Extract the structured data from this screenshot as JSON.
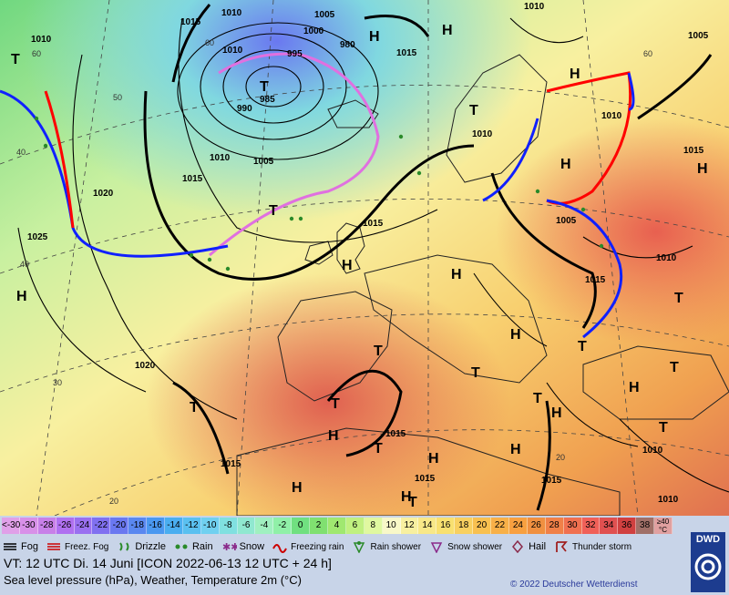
{
  "map": {
    "highs": [
      "H",
      "H",
      "H",
      "H",
      "H",
      "H",
      "H",
      "H",
      "H",
      "H",
      "H",
      "H",
      "H",
      "H",
      "H",
      "H"
    ],
    "lows": [
      "T",
      "T",
      "T",
      "T",
      "T",
      "T",
      "T",
      "T",
      "T",
      "T",
      "T",
      "T",
      "T",
      "T",
      "T"
    ],
    "isobar_labels": [
      "1015",
      "1010",
      "1005",
      "1000",
      "995",
      "990",
      "985",
      "980",
      "1015",
      "1010",
      "1005",
      "1015",
      "1020",
      "1025",
      "1020",
      "1015",
      "1010",
      "1005",
      "1010",
      "1015",
      "1010",
      "1005",
      "1015",
      "1010",
      "1015",
      "1015",
      "1010",
      "1010",
      "1015",
      "1015",
      "1010",
      "1010"
    ],
    "latlon_labels": [
      "60",
      "50",
      "40",
      "30",
      "20",
      "40",
      "60",
      "20",
      "60"
    ],
    "colors": {
      "warm_front": "#ff0000",
      "cold_front": "#1020ff",
      "occluded_front": "#e070e0",
      "isobar": "#000000"
    }
  },
  "legend": {
    "temp_scale": [
      "<-30",
      "-30",
      "-28",
      "-26",
      "-24",
      "-22",
      "-20",
      "-18",
      "-16",
      "-14",
      "-12",
      "-10",
      "-8",
      "-6",
      "-4",
      "-2",
      "0",
      "2",
      "4",
      "6",
      "8",
      "10",
      "12",
      "14",
      "16",
      "18",
      "20",
      "22",
      "24",
      "26",
      "28",
      "30",
      "32",
      "34",
      "36",
      "38",
      "≥40 °C"
    ],
    "temp_colors": [
      "#e0a0e8",
      "#d890e8",
      "#c880e8",
      "#b070f0",
      "#9a70f0",
      "#8070f0",
      "#6a78f0",
      "#5a88f0",
      "#4a98f0",
      "#4aaef0",
      "#5ac0f0",
      "#70d0f0",
      "#80e0e0",
      "#90e8d0",
      "#a0f0c0",
      "#90f0a8",
      "#70e080",
      "#80e070",
      "#a0e870",
      "#c0f080",
      "#e0f8a0",
      "#f8f8c8",
      "#f8f0a0",
      "#f8e888",
      "#f8e070",
      "#f8d060",
      "#f8c050",
      "#f8b048",
      "#f8a040",
      "#f09040",
      "#f08048",
      "#f07050",
      "#f06058",
      "#e05050",
      "#d04040",
      "#a07068",
      "#e0a0a0"
    ],
    "weather_items": [
      "Fog",
      "Freez. Fog",
      "Drizzle",
      "Rain",
      "Snow",
      "Freezing rain",
      "Rain shower",
      "Snow shower",
      "Hail",
      "Thunder storm"
    ],
    "vt_line": "VT: 12 UTC Di.  14 Juni [ICON 2022-06-13  12 UTC + 24 h]",
    "subtitle": "Sea level pressure (hPa), Weather, Temperature 2m (°C)",
    "copyright": "© 2022 Deutscher Wetterdienst",
    "logo": "DWD"
  }
}
